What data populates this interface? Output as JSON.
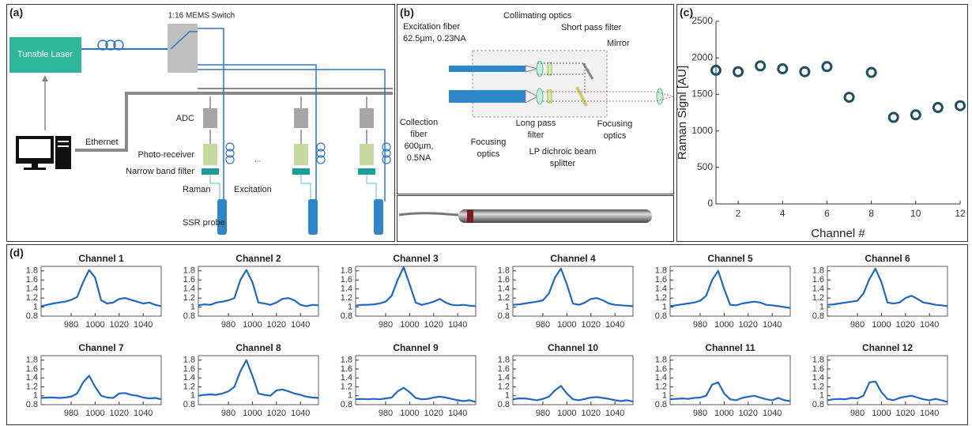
{
  "panel_labels": [
    "(a)",
    "(b)",
    "(c)",
    "(d)"
  ],
  "schematic": {
    "switch": "1:16 MEMS Switch",
    "laser": "Tunable Laser",
    "ethernet": "Ethernet",
    "adc": "ADC",
    "receiver": "Photo-receiver",
    "filter": "Narrow band filter",
    "raman": "Raman",
    "excitation": "Excitation",
    "probe": "SSR probe",
    "ellipsis": "..."
  },
  "probe_diagram": {
    "excitation_fiber": [
      "Excitation fiber",
      "62.5µm, 0.23NA"
    ],
    "collimating": "Collimating optics",
    "short_pass": "Short pass filter",
    "mirror": "Mirror",
    "collection_fiber": [
      "Collection",
      "fiber",
      "600µm,",
      "0.5NA"
    ],
    "focusing_left": [
      "Focusing",
      "optics"
    ],
    "long_pass": [
      "Long pass",
      "filter"
    ],
    "dichroic": [
      "LP dichroic beam",
      "splitter"
    ],
    "focusing_right": [
      "Focusing",
      "optics"
    ]
  },
  "chart_data": [
    {
      "type": "scatter",
      "x_label": "Channel #",
      "y_label": "Raman Signl [AU]",
      "color": "#1d4f5e",
      "x": [
        1,
        2,
        3,
        4,
        5,
        6,
        7,
        8,
        9,
        10,
        11,
        12
      ],
      "values": [
        1830,
        1810,
        1890,
        1850,
        1810,
        1880,
        1460,
        1800,
        1185,
        1220,
        1320,
        1345
      ],
      "xlim": [
        1,
        12
      ],
      "xticks": [
        2,
        4,
        6,
        8,
        10,
        12
      ],
      "ylim": [
        0,
        2500
      ],
      "yticks": [
        0,
        500,
        1000,
        1500,
        2000,
        2500
      ]
    },
    {
      "type": "line",
      "title": "Channel 1",
      "color": "#1f67c4",
      "xlim": [
        955,
        1055
      ],
      "xticks": [
        980,
        1000,
        1020,
        1040
      ],
      "ylim": [
        0.8,
        1.9
      ],
      "yticks": [
        0.8,
        1,
        1.2,
        1.4,
        1.6,
        1.8
      ],
      "x": [
        955,
        960,
        965,
        970,
        975,
        980,
        985,
        990,
        995,
        1000,
        1005,
        1010,
        1015,
        1020,
        1025,
        1030,
        1035,
        1040,
        1045,
        1050,
        1055
      ],
      "values": [
        1.02,
        1.05,
        1.08,
        1.1,
        1.12,
        1.16,
        1.22,
        1.55,
        1.82,
        1.65,
        1.15,
        1.08,
        1.1,
        1.18,
        1.2,
        1.16,
        1.12,
        1.08,
        1.1,
        1.05,
        1.02
      ]
    },
    {
      "type": "line",
      "title": "Channel 2",
      "color": "#1f67c4",
      "xlim": [
        955,
        1055
      ],
      "xticks": [
        980,
        1000,
        1020,
        1040
      ],
      "ylim": [
        0.8,
        1.9
      ],
      "yticks": [
        0.8,
        1,
        1.2,
        1.4,
        1.6,
        1.8
      ],
      "x": [
        955,
        960,
        965,
        970,
        975,
        980,
        985,
        990,
        995,
        1000,
        1005,
        1010,
        1015,
        1020,
        1025,
        1030,
        1035,
        1040,
        1045,
        1050,
        1055
      ],
      "values": [
        1.04,
        1.06,
        1.05,
        1.1,
        1.12,
        1.15,
        1.2,
        1.6,
        1.82,
        1.55,
        1.1,
        1.08,
        1.05,
        1.1,
        1.18,
        1.2,
        1.15,
        1.05,
        1.02,
        1.05,
        1.04
      ]
    },
    {
      "type": "line",
      "title": "Channel 3",
      "color": "#1f67c4",
      "xlim": [
        955,
        1055
      ],
      "xticks": [
        980,
        1000,
        1020,
        1040
      ],
      "ylim": [
        0.8,
        1.9
      ],
      "yticks": [
        0.8,
        1,
        1.2,
        1.4,
        1.6,
        1.8
      ],
      "x": [
        955,
        960,
        965,
        970,
        975,
        980,
        985,
        990,
        995,
        1000,
        1005,
        1010,
        1015,
        1020,
        1025,
        1030,
        1035,
        1040,
        1045,
        1050,
        1055
      ],
      "values": [
        1.03,
        1.05,
        1.05,
        1.06,
        1.08,
        1.12,
        1.25,
        1.6,
        1.88,
        1.5,
        1.1,
        1.05,
        1.08,
        1.12,
        1.18,
        1.1,
        1.05,
        1.04,
        1.05,
        1.03,
        1.02
      ]
    },
    {
      "type": "line",
      "title": "Channel 4",
      "color": "#1f67c4",
      "xlim": [
        955,
        1055
      ],
      "xticks": [
        980,
        1000,
        1020,
        1040
      ],
      "ylim": [
        0.8,
        1.9
      ],
      "yticks": [
        0.8,
        1,
        1.2,
        1.4,
        1.6,
        1.8
      ],
      "x": [
        955,
        960,
        965,
        970,
        975,
        980,
        985,
        990,
        995,
        1000,
        1005,
        1010,
        1015,
        1020,
        1025,
        1030,
        1035,
        1040,
        1045,
        1050,
        1055
      ],
      "values": [
        1.05,
        1.06,
        1.08,
        1.1,
        1.12,
        1.15,
        1.3,
        1.65,
        1.85,
        1.5,
        1.08,
        1.05,
        1.1,
        1.18,
        1.2,
        1.15,
        1.08,
        1.05,
        1.04,
        1.03,
        1.02
      ]
    },
    {
      "type": "line",
      "title": "Channel 5",
      "color": "#1f67c4",
      "xlim": [
        955,
        1055
      ],
      "xticks": [
        980,
        1000,
        1020,
        1040
      ],
      "ylim": [
        0.8,
        1.9
      ],
      "yticks": [
        0.8,
        1,
        1.2,
        1.4,
        1.6,
        1.8
      ],
      "x": [
        955,
        960,
        965,
        970,
        975,
        980,
        985,
        990,
        995,
        1000,
        1005,
        1010,
        1015,
        1020,
        1025,
        1030,
        1035,
        1040,
        1045,
        1050,
        1055
      ],
      "values": [
        1.02,
        1.04,
        1.06,
        1.08,
        1.1,
        1.14,
        1.25,
        1.6,
        1.8,
        1.4,
        1.05,
        1.04,
        1.08,
        1.1,
        1.12,
        1.1,
        1.05,
        1.04,
        1.02,
        1.0,
        0.98
      ]
    },
    {
      "type": "line",
      "title": "Channel 6",
      "color": "#1f67c4",
      "xlim": [
        955,
        1055
      ],
      "xticks": [
        980,
        1000,
        1020,
        1040
      ],
      "ylim": [
        0.8,
        1.9
      ],
      "yticks": [
        0.8,
        1,
        1.2,
        1.4,
        1.6,
        1.8
      ],
      "x": [
        955,
        960,
        965,
        970,
        975,
        980,
        985,
        990,
        995,
        1000,
        1005,
        1010,
        1015,
        1020,
        1025,
        1030,
        1035,
        1040,
        1045,
        1050,
        1055
      ],
      "values": [
        1.05,
        1.06,
        1.08,
        1.1,
        1.12,
        1.14,
        1.3,
        1.62,
        1.85,
        1.55,
        1.1,
        1.08,
        1.1,
        1.2,
        1.25,
        1.18,
        1.1,
        1.08,
        1.05,
        1.04,
        1.02
      ]
    },
    {
      "type": "line",
      "title": "Channel 7",
      "color": "#1f67c4",
      "xlim": [
        955,
        1055
      ],
      "xticks": [
        980,
        1000,
        1020,
        1040
      ],
      "ylim": [
        0.8,
        1.9
      ],
      "yticks": [
        0.8,
        1,
        1.2,
        1.4,
        1.6,
        1.8
      ],
      "x": [
        955,
        960,
        965,
        970,
        975,
        980,
        985,
        990,
        995,
        1000,
        1005,
        1010,
        1015,
        1020,
        1025,
        1030,
        1035,
        1040,
        1045,
        1050,
        1055
      ],
      "values": [
        0.95,
        0.96,
        0.96,
        0.95,
        0.96,
        0.98,
        1.05,
        1.3,
        1.45,
        1.2,
        1.0,
        0.96,
        0.95,
        1.05,
        1.06,
        1.02,
        1.0,
        0.96,
        0.94,
        0.95,
        0.92
      ]
    },
    {
      "type": "line",
      "title": "Channel 8",
      "color": "#1f67c4",
      "xlim": [
        955,
        1055
      ],
      "xticks": [
        980,
        1000,
        1020,
        1040
      ],
      "ylim": [
        0.8,
        1.9
      ],
      "yticks": [
        0.8,
        1,
        1.2,
        1.4,
        1.6,
        1.8
      ],
      "x": [
        955,
        960,
        965,
        970,
        975,
        980,
        985,
        990,
        995,
        1000,
        1005,
        1010,
        1015,
        1020,
        1025,
        1030,
        1035,
        1040,
        1045,
        1050,
        1055
      ],
      "values": [
        1.0,
        1.02,
        1.03,
        1.02,
        1.05,
        1.1,
        1.2,
        1.55,
        1.8,
        1.45,
        1.05,
        1.02,
        1.0,
        1.12,
        1.14,
        1.1,
        1.05,
        1.02,
        0.98,
        0.96,
        0.95
      ]
    },
    {
      "type": "line",
      "title": "Channel 9",
      "color": "#1f67c4",
      "xlim": [
        955,
        1055
      ],
      "xticks": [
        980,
        1000,
        1020,
        1040
      ],
      "ylim": [
        0.8,
        1.9
      ],
      "yticks": [
        0.8,
        1,
        1.2,
        1.4,
        1.6,
        1.8
      ],
      "x": [
        955,
        960,
        965,
        970,
        975,
        980,
        985,
        990,
        995,
        1000,
        1005,
        1010,
        1015,
        1020,
        1025,
        1030,
        1035,
        1040,
        1045,
        1050,
        1055
      ],
      "values": [
        0.92,
        0.93,
        0.92,
        0.93,
        0.92,
        0.94,
        0.96,
        1.1,
        1.18,
        1.08,
        0.95,
        0.92,
        0.93,
        0.96,
        0.98,
        0.96,
        0.93,
        0.9,
        0.88,
        0.9,
        0.86
      ]
    },
    {
      "type": "line",
      "title": "Channel 10",
      "color": "#1f67c4",
      "xlim": [
        955,
        1055
      ],
      "xticks": [
        980,
        1000,
        1020,
        1040
      ],
      "ylim": [
        0.8,
        1.9
      ],
      "yticks": [
        0.8,
        1,
        1.2,
        1.4,
        1.6,
        1.8
      ],
      "x": [
        955,
        960,
        965,
        970,
        975,
        980,
        985,
        990,
        995,
        1000,
        1005,
        1010,
        1015,
        1020,
        1025,
        1030,
        1035,
        1040,
        1045,
        1050,
        1055
      ],
      "values": [
        0.92,
        0.94,
        0.94,
        0.92,
        0.9,
        0.93,
        0.98,
        1.12,
        1.22,
        1.05,
        0.92,
        0.9,
        0.93,
        0.96,
        0.97,
        0.95,
        0.93,
        0.9,
        0.88,
        0.9,
        0.87
      ]
    },
    {
      "type": "line",
      "title": "Channel 11",
      "color": "#1f67c4",
      "xlim": [
        955,
        1055
      ],
      "xticks": [
        980,
        1000,
        1020,
        1040
      ],
      "ylim": [
        0.8,
        1.9
      ],
      "yticks": [
        0.8,
        1,
        1.2,
        1.4,
        1.6,
        1.8
      ],
      "x": [
        955,
        960,
        965,
        970,
        975,
        980,
        985,
        990,
        995,
        1000,
        1005,
        1010,
        1015,
        1020,
        1025,
        1030,
        1035,
        1040,
        1045,
        1050,
        1055
      ],
      "values": [
        0.92,
        0.93,
        0.94,
        0.93,
        0.95,
        0.96,
        1.0,
        1.25,
        1.3,
        1.05,
        0.92,
        0.9,
        0.95,
        0.98,
        1.0,
        0.96,
        0.92,
        0.9,
        0.95,
        0.9,
        0.88
      ]
    },
    {
      "type": "line",
      "title": "Channel 12",
      "color": "#1f67c4",
      "xlim": [
        955,
        1055
      ],
      "xticks": [
        980,
        1000,
        1020,
        1040
      ],
      "ylim": [
        0.8,
        1.9
      ],
      "yticks": [
        0.8,
        1,
        1.2,
        1.4,
        1.6,
        1.8
      ],
      "x": [
        955,
        960,
        965,
        970,
        975,
        980,
        985,
        990,
        995,
        1000,
        1005,
        1010,
        1015,
        1020,
        1025,
        1030,
        1035,
        1040,
        1045,
        1050,
        1055
      ],
      "values": [
        0.9,
        0.92,
        0.93,
        0.92,
        0.95,
        0.94,
        1.0,
        1.3,
        1.32,
        1.08,
        0.93,
        0.9,
        0.95,
        0.98,
        1.0,
        0.96,
        0.92,
        0.9,
        0.93,
        0.9,
        0.86
      ]
    }
  ]
}
